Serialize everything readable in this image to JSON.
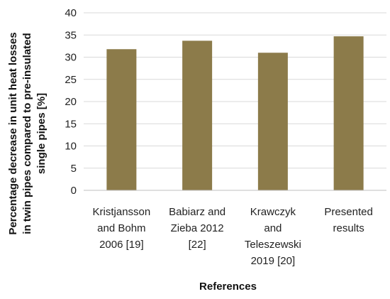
{
  "chart_data": {
    "type": "bar",
    "categories": [
      [
        "Kristjansson",
        "and Bohm",
        "2006 [19]"
      ],
      [
        "Babiarz and",
        "Zieba 2012",
        "[22]"
      ],
      [
        "Krawczyk",
        "and",
        "Teleszewski",
        "2019 [20]"
      ],
      [
        "Presented",
        "results"
      ]
    ],
    "values": [
      31.8,
      33.7,
      31.0,
      34.7
    ],
    "xlabel": "References",
    "ylabel": [
      "Percentage decrease in unit heat losses",
      "in twin pipes compared to pre-insulated",
      "single pipes [%]"
    ],
    "ylim": [
      0,
      40
    ],
    "yticks": [
      0,
      5,
      10,
      15,
      20,
      25,
      30,
      35,
      40
    ],
    "grid": true,
    "legend": "none",
    "bar_color": "#8c7b4a"
  }
}
